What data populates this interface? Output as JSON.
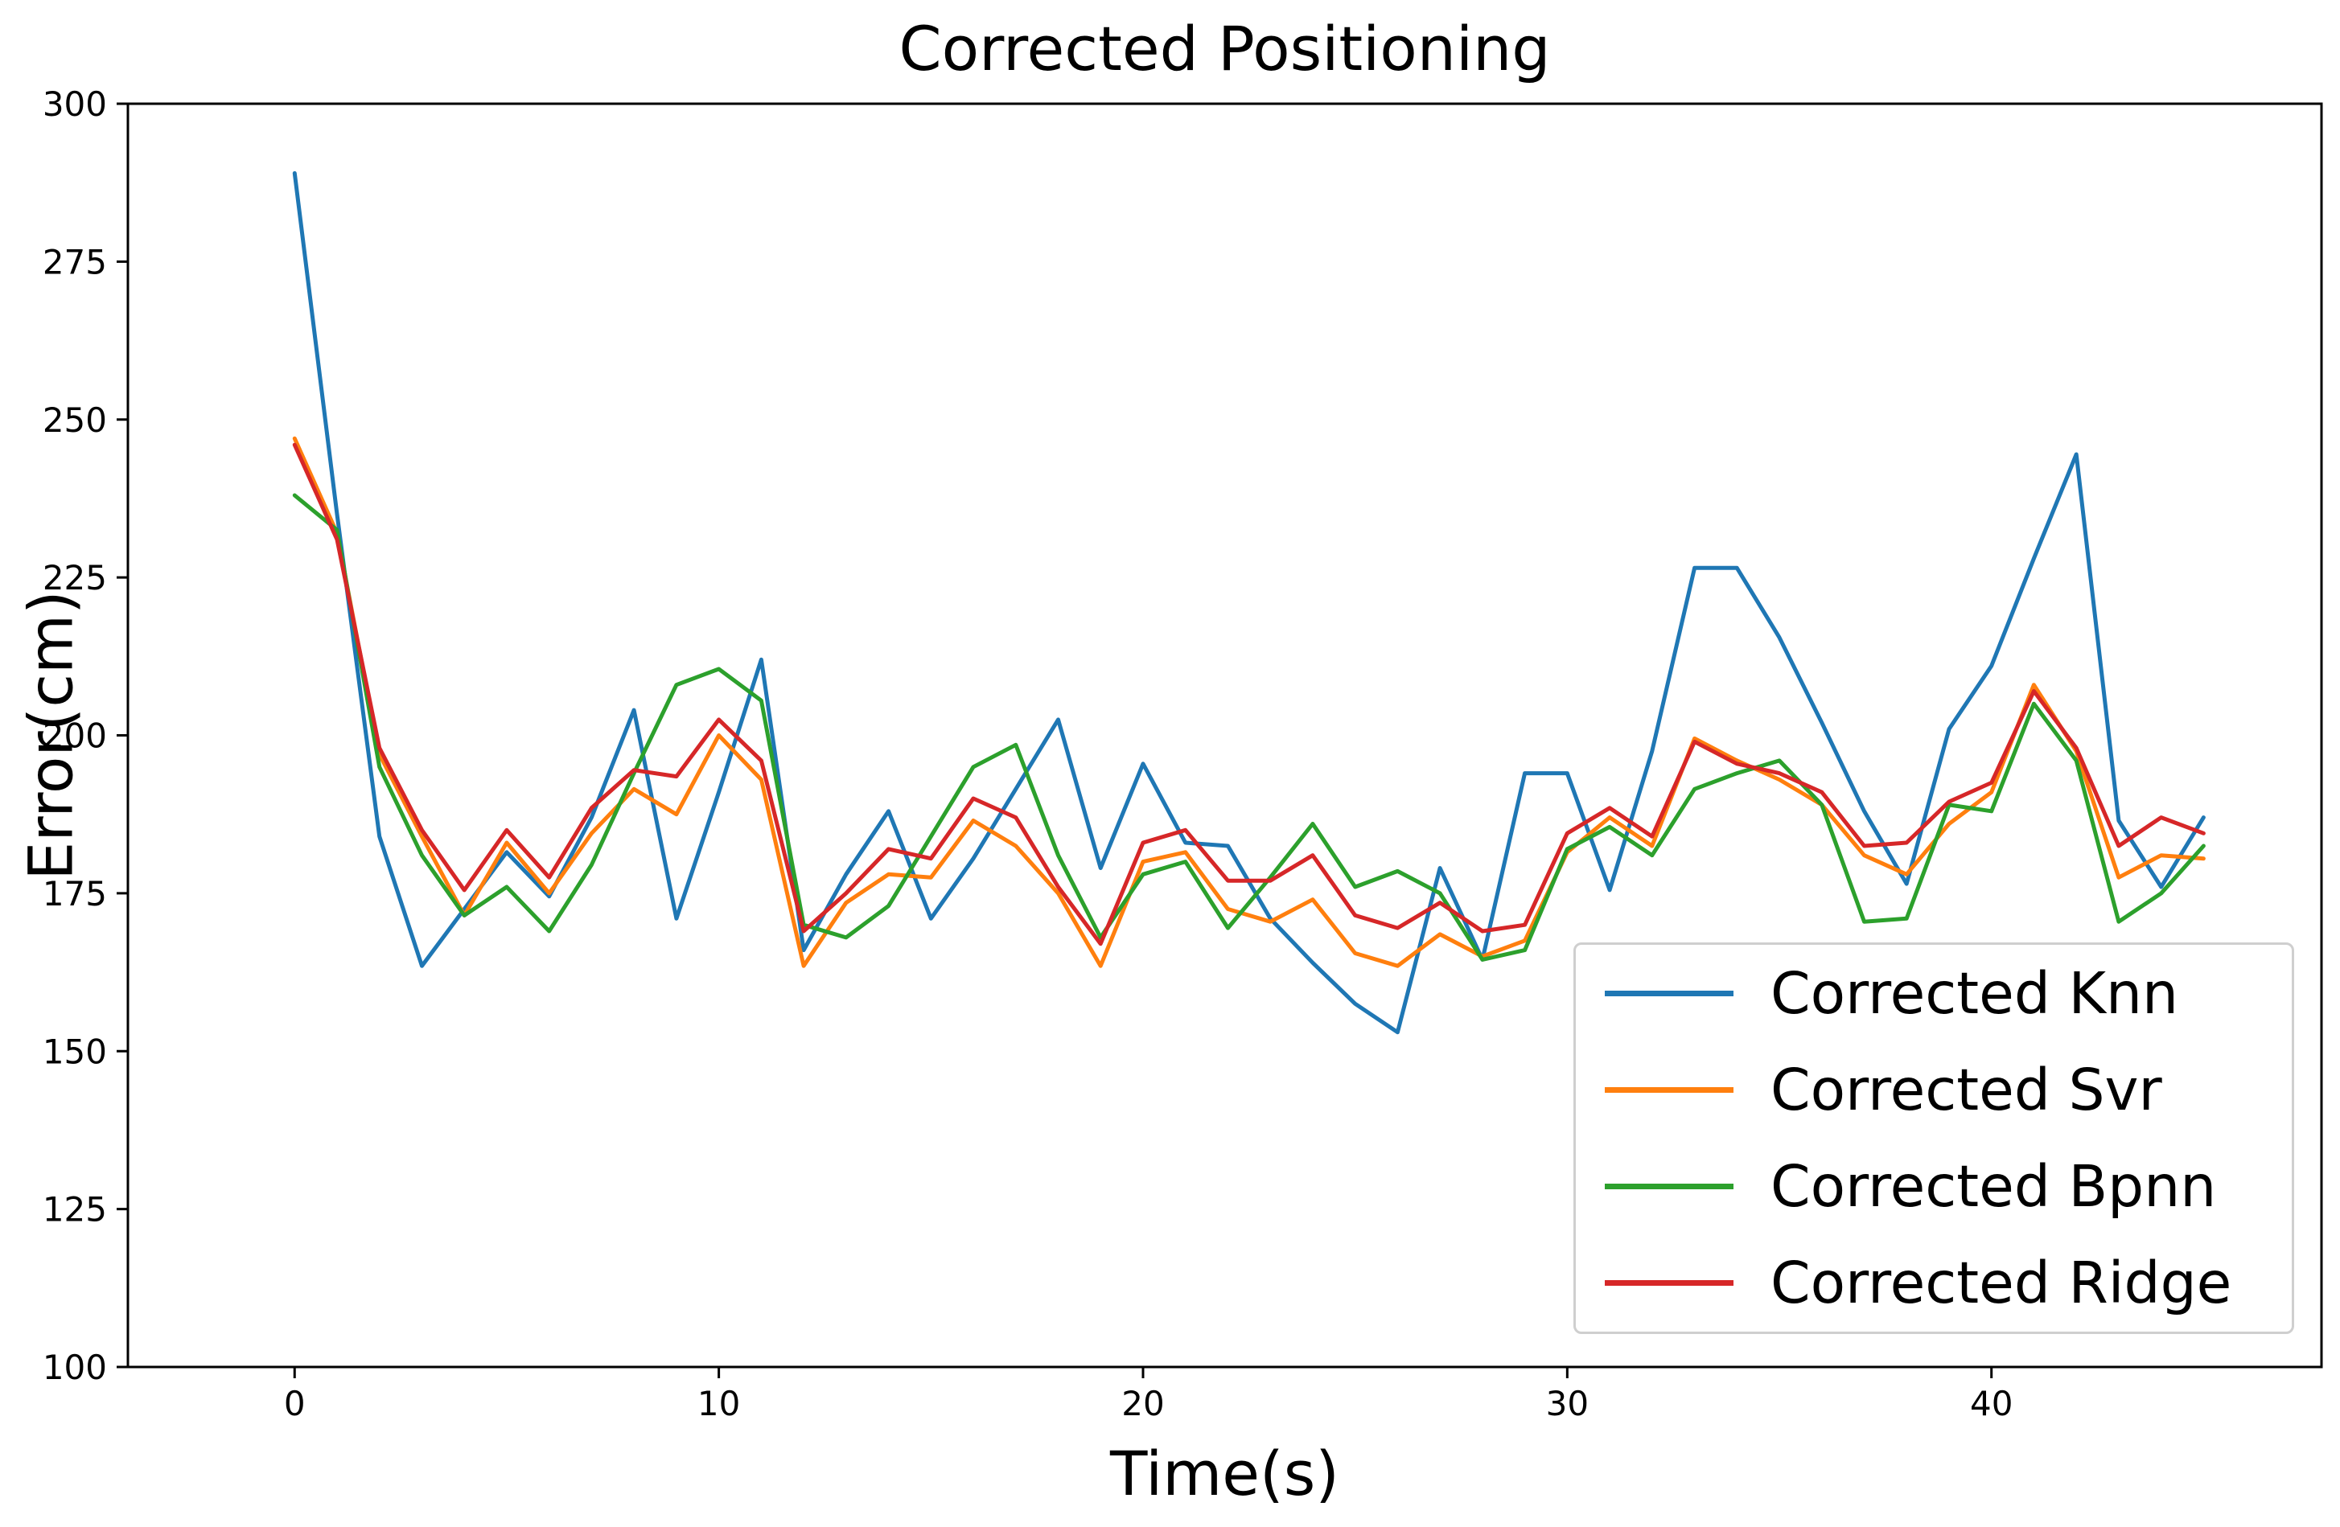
{
  "chart_data": {
    "type": "line",
    "title": "Corrected Positioning",
    "xlabel": "Time(s)",
    "ylabel": "Error(cm)",
    "xlim": [
      -3.93,
      47.78
    ],
    "ylim": [
      100,
      300
    ],
    "xticks": [
      0,
      10,
      20,
      30,
      40
    ],
    "yticks": [
      100,
      125,
      150,
      175,
      200,
      225,
      250,
      275,
      300
    ],
    "grid": false,
    "legend_position": "lower right",
    "x": [
      0,
      1,
      2,
      3,
      4,
      5,
      6,
      7,
      8,
      9,
      10,
      11,
      12,
      13,
      14,
      15,
      16,
      17,
      18,
      19,
      20,
      21,
      22,
      23,
      24,
      25,
      26,
      27,
      28,
      29,
      30,
      31,
      32,
      33,
      34,
      35,
      36,
      37,
      38,
      39,
      40,
      41,
      42,
      43,
      44,
      45
    ],
    "series": [
      {
        "name": "Corrected Knn",
        "color": "#1f77b4",
        "values": [
          289,
          235,
          184,
          163.5,
          172.5,
          181.5,
          174.5,
          187,
          204,
          171,
          191,
          212,
          166,
          178,
          188,
          171,
          180.5,
          191.5,
          202.5,
          179,
          195.5,
          183,
          182.5,
          171,
          164,
          157.5,
          153,
          179,
          164.5,
          194,
          194,
          175.5,
          197.5,
          226.5,
          226.5,
          215.5,
          202,
          188,
          176.5,
          201,
          211,
          228,
          244.5,
          186.5,
          176,
          187
        ]
      },
      {
        "name": "Corrected Svr",
        "color": "#ff7f0e",
        "values": [
          247,
          232,
          197,
          184,
          171.5,
          183,
          175,
          184.5,
          191.5,
          187.5,
          200,
          193,
          163.5,
          173.5,
          178,
          177.5,
          186.5,
          182.5,
          175,
          163.5,
          180,
          181.5,
          172.5,
          170.5,
          174,
          165.5,
          163.5,
          168.5,
          165,
          167.5,
          181.5,
          187,
          182.5,
          199.5,
          196,
          193,
          189,
          181,
          178,
          186,
          191,
          208,
          197.5,
          177.5,
          181,
          180.5
        ]
      },
      {
        "name": "Corrected Bpnn",
        "color": "#2ca02c",
        "values": [
          238,
          232.5,
          195,
          181,
          171.5,
          176,
          169,
          179.5,
          194,
          208,
          210.5,
          205.5,
          170,
          168,
          173,
          184,
          195,
          198.5,
          181,
          168,
          178,
          180,
          169.5,
          177.5,
          186,
          176,
          178.5,
          175,
          164.5,
          166,
          182,
          185.5,
          181,
          191.5,
          194,
          196,
          189,
          170.5,
          171,
          189,
          188,
          205,
          196,
          170.5,
          175,
          182.5
        ]
      },
      {
        "name": "Corrected Ridge",
        "color": "#d62728",
        "values": [
          246,
          231,
          198,
          185,
          175.5,
          185,
          177.5,
          188.5,
          194.5,
          193.5,
          202.5,
          196,
          169,
          175,
          182,
          180.5,
          190,
          187,
          176,
          167,
          183,
          185,
          177,
          177,
          181,
          171.5,
          169.5,
          173.5,
          169,
          170,
          184.5,
          188.5,
          184,
          199,
          195.5,
          194,
          191,
          182.5,
          183,
          189.5,
          192.5,
          207,
          198,
          182.5,
          187,
          184.5
        ]
      }
    ]
  },
  "labels": {
    "title": "Corrected Positioning",
    "xlabel": "Time(s)",
    "ylabel": "Error(cm)"
  }
}
